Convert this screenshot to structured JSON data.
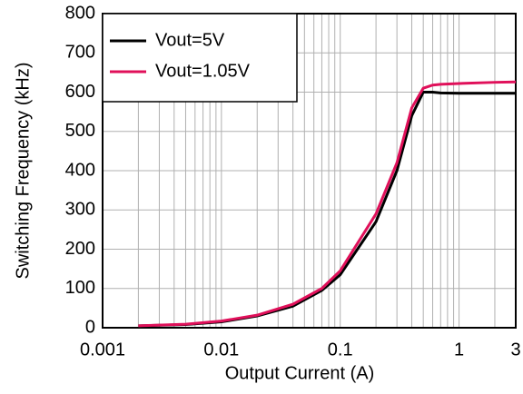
{
  "chart_data": {
    "type": "line",
    "x_label": "Output Current (A)",
    "y_label": "Switching Frequency (kHz)",
    "x_scale": "log",
    "xlim": [
      0.001,
      3
    ],
    "xticks": [
      0.001,
      0.01,
      0.1,
      1,
      3
    ],
    "ylim": [
      0,
      800
    ],
    "yticks": [
      0,
      100,
      200,
      300,
      400,
      500,
      600,
      700,
      800
    ],
    "grid": true,
    "legend": "upper left",
    "x": [
      0.002,
      0.005,
      0.01,
      0.02,
      0.04,
      0.07,
      0.1,
      0.2,
      0.3,
      0.4,
      0.5,
      0.6,
      0.7,
      1,
      2,
      3
    ],
    "series": [
      {
        "name": "Vout=5V",
        "color": "#000000",
        "values": [
          5,
          8,
          15,
          30,
          55,
          95,
          135,
          270,
          400,
          540,
          600,
          600,
          598,
          597,
          597,
          597
        ]
      },
      {
        "name": "Vout=1.05V",
        "color": "#e0105a",
        "values": [
          5,
          9,
          17,
          32,
          60,
          100,
          145,
          290,
          420,
          560,
          610,
          618,
          620,
          622,
          625,
          626
        ]
      }
    ]
  }
}
